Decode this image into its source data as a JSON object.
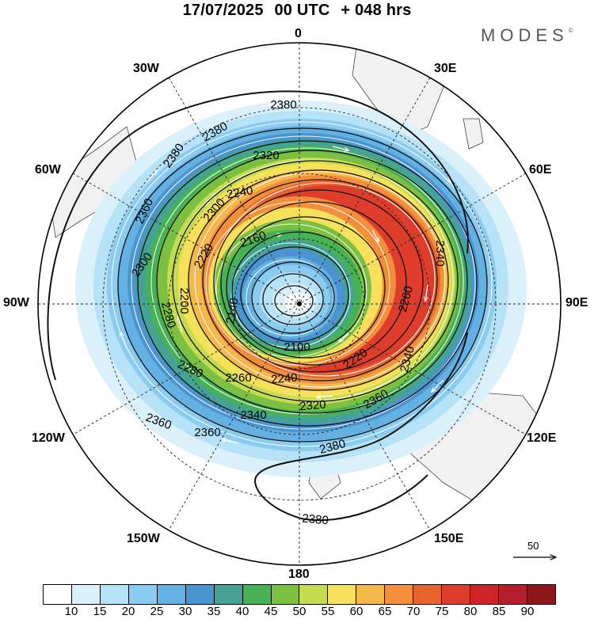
{
  "header": {
    "date": "17/07/2025",
    "time": "00 UTC",
    "lead": "+ 048 hrs"
  },
  "brand": {
    "logo_text": "MODES",
    "mark": "©"
  },
  "longitude_labels": {
    "lon_0": "0",
    "lon_30e": "30E",
    "lon_60e": "60E",
    "lon_90e": "90E",
    "lon_120e": "120E",
    "lon_150e": "150E",
    "lon_180": "180",
    "lon_150w": "150W",
    "lon_120w": "120W",
    "lon_90w": "90W",
    "lon_60w": "60W",
    "lon_30w": "30W"
  },
  "contour_labels": [
    "2380",
    "2380",
    "2360",
    "2320",
    "2300",
    "2240",
    "2220",
    "2160",
    "2300",
    "2280",
    "2200",
    "2140",
    "2260",
    "2100",
    "2220",
    "2240",
    "2280",
    "2260",
    "2320",
    "2340",
    "2360",
    "2340",
    "2360",
    "2360",
    "2380",
    "2380",
    "2340",
    "2380"
  ],
  "reference_vector": {
    "value": "50"
  },
  "colorbar": {
    "colors": [
      "#ffffff",
      "#daf1fc",
      "#b6e2f7",
      "#8bcbef",
      "#63b0e3",
      "#4a94cf",
      "#45a396",
      "#47b156",
      "#7cc042",
      "#c6dc50",
      "#f7e15b",
      "#f7b84b",
      "#f38e3a",
      "#e9632f",
      "#df3d2b",
      "#cf2328",
      "#b51e2d",
      "#8c1619"
    ],
    "labels": [
      "10",
      "15",
      "20",
      "25",
      "30",
      "35",
      "40",
      "45",
      "50",
      "55",
      "60",
      "65",
      "70",
      "75",
      "80",
      "85",
      "90"
    ]
  }
}
